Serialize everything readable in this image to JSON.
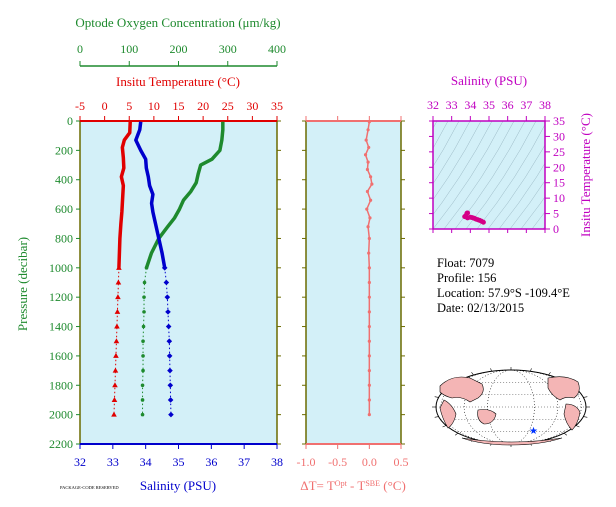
{
  "colors": {
    "oxygen": "#1e8a2e",
    "temperature": "#e00000",
    "salinity": "#0000cc",
    "delta_t": "#f07070",
    "plot_bg": "#d3f0f8",
    "ts_frame": "#c000c0",
    "ts_points": "#d40087",
    "axis": "#6b6b00"
  },
  "info": {
    "float": "Float:  7079",
    "profile": "Profile:  156",
    "location": "Location:  57.9°S  -109.4°E",
    "date": "Date:  02/13/2015"
  },
  "footnote": "PACKAGE-CODE RESERVED",
  "map": {
    "marker_label": "float-position",
    "marker_lon": -109.4,
    "marker_lat": -57.9
  },
  "chart_data": [
    {
      "type": "line",
      "name": "profile-panel",
      "ylabel": "Pressure (decibar)",
      "ylim": [
        2200,
        0
      ],
      "yticks": [
        0,
        200,
        400,
        600,
        800,
        1000,
        1200,
        1400,
        1600,
        1800,
        2000,
        2200
      ],
      "oxygen_axis": {
        "label": "Optode Oxygen Concentration (μm/kg)",
        "lim": [
          0,
          400
        ],
        "ticks": [
          0,
          100,
          200,
          300,
          400
        ]
      },
      "temperature_axis": {
        "label": "Insitu Temperature (°C)",
        "lim": [
          -5,
          35
        ],
        "ticks": [
          -5,
          0,
          5,
          10,
          15,
          20,
          25,
          30,
          35
        ]
      },
      "salinity_axis": {
        "label": "Salinity (PSU)",
        "lim": [
          32,
          38
        ],
        "ticks": [
          32,
          33,
          34,
          35,
          36,
          37,
          38
        ]
      },
      "series": [
        {
          "key": "oxygen",
          "units": "μm/kg",
          "pressure": [
            5,
            60,
            130,
            200,
            260,
            300,
            360,
            420,
            480,
            540,
            600,
            660,
            720,
            800,
            900,
            1000,
            1100,
            1200,
            1300,
            1400,
            1500,
            1600,
            1700,
            1800,
            1900,
            2000
          ],
          "values": [
            290,
            290,
            288,
            284,
            268,
            245,
            240,
            236,
            225,
            210,
            202,
            192,
            178,
            160,
            145,
            135,
            131,
            130,
            130,
            129,
            128,
            128,
            128,
            127,
            127,
            127
          ]
        },
        {
          "key": "temperature",
          "units": "°C",
          "pressure": [
            5,
            80,
            130,
            180,
            250,
            320,
            380,
            440,
            500,
            560,
            620,
            700,
            800,
            900,
            1000,
            1100,
            1200,
            1300,
            1400,
            1500,
            1600,
            1700,
            1800,
            1900,
            2000
          ],
          "values": [
            5.2,
            5.1,
            4.0,
            3.6,
            3.8,
            3.9,
            3.4,
            3.8,
            3.7,
            3.6,
            3.5,
            3.3,
            3.1,
            3.0,
            2.9,
            2.8,
            2.7,
            2.6,
            2.5,
            2.4,
            2.3,
            2.2,
            2.1,
            2.0,
            1.9
          ]
        },
        {
          "key": "salinity",
          "units": "PSU",
          "pressure": [
            5,
            60,
            130,
            200,
            260,
            320,
            380,
            440,
            500,
            560,
            620,
            700,
            800,
            900,
            1000,
            1100,
            1200,
            1300,
            1400,
            1500,
            1600,
            1700,
            1800,
            1900,
            2000
          ],
          "values": [
            33.85,
            33.82,
            33.7,
            33.85,
            34.0,
            34.02,
            34.08,
            34.12,
            34.22,
            34.18,
            34.22,
            34.3,
            34.4,
            34.5,
            34.58,
            34.63,
            34.66,
            34.68,
            34.7,
            34.72,
            34.73,
            34.74,
            34.75,
            34.76,
            34.77
          ]
        }
      ]
    },
    {
      "type": "scatter",
      "name": "delta-t-panel",
      "xlabel": "ΔT= T^Opt - T^SBE (°C)",
      "xlim": [
        -1.0,
        0.5
      ],
      "xticks": [
        "-1.0",
        "-0.5",
        "0.0",
        "0.5"
      ],
      "ylim": [
        2200,
        0
      ],
      "series": [
        {
          "key": "delta_t",
          "pressure": [
            5,
            60,
            130,
            180,
            230,
            280,
            330,
            380,
            430,
            480,
            540,
            600,
            660,
            720,
            800,
            900,
            1000,
            1100,
            1200,
            1300,
            1400,
            1500,
            1600,
            1700,
            1800,
            1900,
            2000
          ],
          "values": [
            0.0,
            -0.02,
            -0.05,
            -0.01,
            -0.06,
            -0.02,
            -0.03,
            0.02,
            0.04,
            -0.03,
            0.02,
            -0.04,
            0.01,
            -0.02,
            0.0,
            -0.01,
            0.0,
            0.0,
            0.0,
            0.0,
            0.0,
            0.0,
            0.0,
            0.0,
            0.0,
            0.0,
            0.0
          ]
        }
      ]
    },
    {
      "type": "scatter",
      "name": "ts-panel",
      "xlabel": "Salinity (PSU)",
      "ylabel": "Insitu Temperature (°C)",
      "xlim": [
        32,
        38
      ],
      "ylim": [
        0,
        35
      ],
      "xticks": [
        32,
        33,
        34,
        35,
        36,
        37,
        38
      ],
      "yticks": [
        0,
        5,
        10,
        15,
        20,
        25,
        30,
        35
      ],
      "series": [
        {
          "key": "ts",
          "salinity": [
            33.85,
            33.82,
            33.7,
            33.85,
            34.0,
            34.1,
            34.2,
            34.3,
            34.4,
            34.5,
            34.6,
            34.7
          ],
          "temperature": [
            5.2,
            5.1,
            4.0,
            3.6,
            3.8,
            3.7,
            3.5,
            3.2,
            3.0,
            2.8,
            2.5,
            2.2
          ]
        }
      ]
    }
  ]
}
